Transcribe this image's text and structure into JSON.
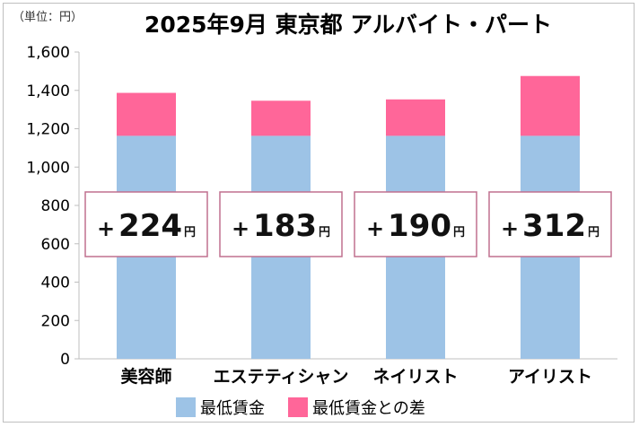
{
  "unit_label": "（単位：円）",
  "chart_data": {
    "type": "bar",
    "stacked": true,
    "title": "2025年9月 東京都 アルバイト・パート",
    "categories": [
      "美容師",
      "エステティシャン",
      "ネイリスト",
      "アイリスト"
    ],
    "series": [
      {
        "name": "最低賃金",
        "values": [
          1163,
          1163,
          1163,
          1163
        ],
        "color": "#9DC3E6"
      },
      {
        "name": "最低賃金との差",
        "values": [
          224,
          183,
          190,
          312
        ],
        "color": "#FF6699"
      }
    ],
    "annotations": [
      {
        "sign": "+",
        "value": "224",
        "unit": "円"
      },
      {
        "sign": "+",
        "value": "183",
        "unit": "円"
      },
      {
        "sign": "+",
        "value": "190",
        "unit": "円"
      },
      {
        "sign": "+",
        "value": "312",
        "unit": "円"
      }
    ],
    "yticks": [
      "0",
      "200",
      "400",
      "600",
      "800",
      "1,000",
      "1,200",
      "1,400",
      "1,600"
    ],
    "ylim": [
      0,
      1600
    ],
    "xlabel": "",
    "ylabel": "",
    "grid": false,
    "legend_position": "bottom"
  },
  "colors": {
    "axis": "#bfbfbf",
    "annotation_border": "#c0708f",
    "annotation_text": "#111111"
  }
}
